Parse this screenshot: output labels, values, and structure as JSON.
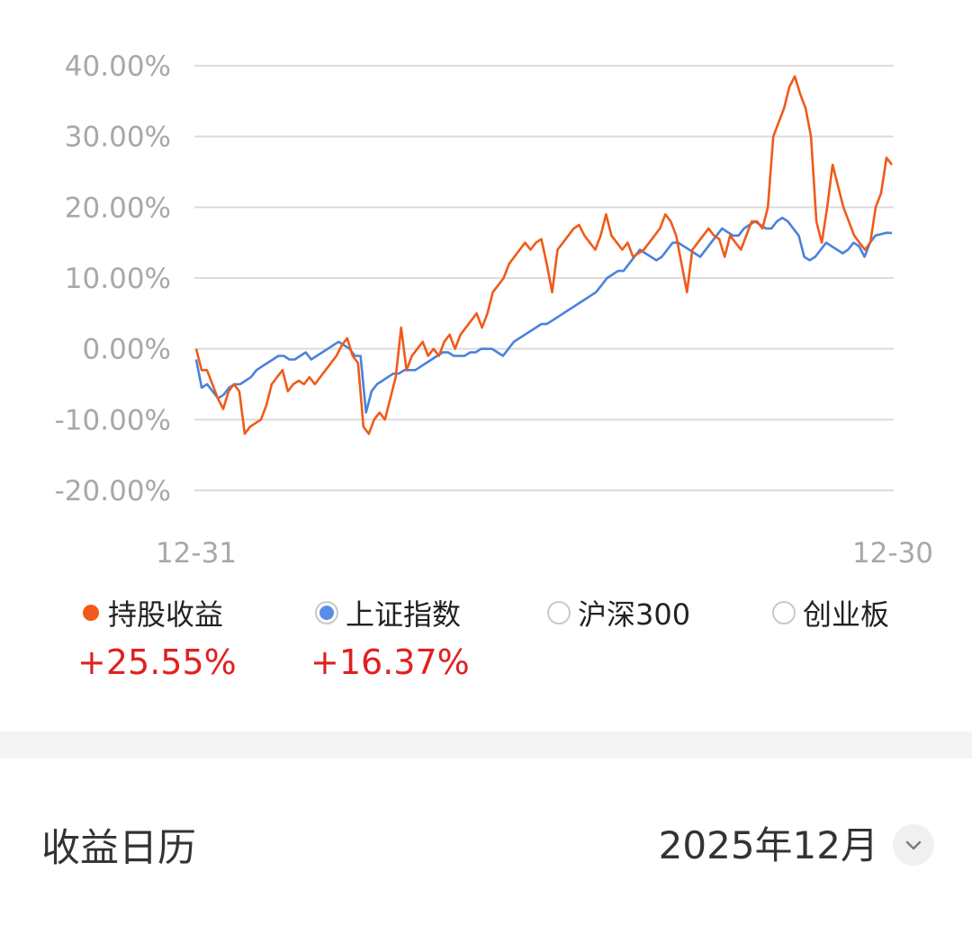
{
  "chart_data": {
    "type": "line",
    "x_start_label": "12-31",
    "x_end_label": "12-30",
    "y_ticks": [
      "40.00%",
      "30.00%",
      "20.00%",
      "10.00%",
      "0.00%",
      "-10.00%",
      "-20.00%"
    ],
    "ylim": [
      -20,
      40
    ],
    "grid": true,
    "series": [
      {
        "name": "持股收益",
        "color": "#f05a1a",
        "values": [
          0,
          -3,
          -3,
          -5,
          -7,
          -8.5,
          -6,
          -5,
          -6,
          -12,
          -11,
          -10.5,
          -10,
          -8,
          -5,
          -4,
          -3,
          -6,
          -5,
          -4.5,
          -5,
          -4,
          -5,
          -4,
          -3,
          -2,
          -1,
          0.5,
          1.5,
          -1,
          -2,
          -11,
          -12,
          -10,
          -9,
          -10,
          -7,
          -4,
          3,
          -3,
          -1,
          0,
          1,
          -1,
          0,
          -1,
          1,
          2,
          0,
          2,
          3,
          4,
          5,
          3,
          5,
          8,
          9,
          10,
          12,
          13,
          14,
          15,
          14,
          15,
          15.5,
          12,
          8,
          14,
          15,
          16,
          17,
          17.5,
          16,
          15,
          14,
          16,
          19,
          16,
          15,
          14,
          15,
          13,
          13.5,
          14,
          15,
          16,
          17,
          19,
          18,
          16,
          12,
          8,
          14,
          15,
          16,
          17,
          16,
          15.5,
          13,
          16,
          15,
          14,
          16,
          18,
          18,
          17,
          20,
          30,
          32,
          34,
          37,
          38.5,
          36,
          34,
          30,
          18,
          15,
          20,
          26,
          23,
          20,
          18,
          16,
          15,
          14,
          15,
          20,
          22,
          27,
          26
        ],
        "total_return": "+25.55%"
      },
      {
        "name": "上证指数",
        "color": "#4a82dc",
        "values": [
          -1.5,
          -5.5,
          -5,
          -6,
          -7,
          -6.5,
          -5.5,
          -5,
          -5,
          -4.5,
          -4,
          -3,
          -2.5,
          -2,
          -1.5,
          -1,
          -1,
          -1.5,
          -1.5,
          -1,
          -0.5,
          -1.5,
          -1,
          -0.5,
          0,
          0.5,
          1,
          0.5,
          0,
          -1,
          -1,
          -9,
          -6,
          -5,
          -4.5,
          -4,
          -3.5,
          -3.5,
          -3,
          -3,
          -3,
          -2.5,
          -2,
          -1.5,
          -1,
          -0.5,
          -0.5,
          -1,
          -1,
          -1,
          -0.5,
          -0.5,
          0,
          0,
          0,
          -0.5,
          -1,
          0,
          1,
          1.5,
          2,
          2.5,
          3,
          3.5,
          3.5,
          4,
          4.5,
          5,
          5.5,
          6,
          6.5,
          7,
          7.5,
          8,
          9,
          10,
          10.5,
          11,
          11,
          12,
          13,
          14,
          13.5,
          13,
          12.5,
          13,
          14,
          15,
          15,
          14.5,
          14,
          13.5,
          13,
          14,
          15,
          16,
          17,
          16.5,
          16,
          16,
          17,
          17.5,
          18,
          17.5,
          17,
          17,
          18,
          18.5,
          18,
          17,
          16,
          13,
          12.5,
          13,
          14,
          15,
          14.5,
          14,
          13.5,
          14,
          15,
          14.5,
          13,
          15,
          16,
          16.2,
          16.4,
          16.37
        ],
        "total_return": "+16.37%"
      }
    ],
    "title": "",
    "xlabel": "",
    "ylabel": ""
  },
  "legend": [
    {
      "label": "持股收益",
      "kind": "dot",
      "color": "#f05a1a",
      "selected": true
    },
    {
      "label": "上证指数",
      "kind": "radio",
      "color": "#4a82dc",
      "selected": true
    },
    {
      "label": "沪深300",
      "kind": "radio",
      "selected": false
    },
    {
      "label": "创业板",
      "kind": "radio",
      "selected": false
    }
  ],
  "returns": {
    "holding": "+25.55%",
    "sse": "+16.37%"
  },
  "calendar": {
    "title": "收益日历",
    "month": "2025年12月",
    "dropdown_icon": "chevron-down-icon"
  }
}
